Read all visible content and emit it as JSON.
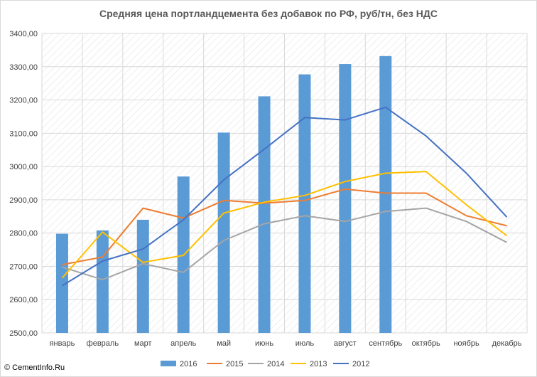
{
  "chart_data": {
    "type": "bar+line",
    "title": "Средняя цена портландцемента без добавок по РФ, руб/тн, без НДС",
    "categories": [
      "январь",
      "февраль",
      "март",
      "апрель",
      "май",
      "июнь",
      "июль",
      "август",
      "сентябрь",
      "октябрь",
      "ноябрь",
      "декабрь"
    ],
    "ylim": [
      2500,
      3400
    ],
    "yticks": [
      "2500,00",
      "2600,00",
      "2700,00",
      "2800,00",
      "2900,00",
      "3000,00",
      "3100,00",
      "3200,00",
      "3300,00",
      "3400,00"
    ],
    "grid": "diagonal hatched plot area",
    "legend_position": "bottom",
    "series": [
      {
        "name": "2016",
        "kind": "bar",
        "color": "#5b9bd5",
        "values": [
          2798,
          2808,
          2840,
          2970,
          3102,
          3211,
          3277,
          3308,
          3332,
          null,
          null,
          null
        ]
      },
      {
        "name": "2015",
        "kind": "line",
        "color": "#ed7d31",
        "values": [
          2705,
          2728,
          2875,
          2845,
          2898,
          2890,
          2898,
          2932,
          2920,
          2920,
          2852,
          2822
        ]
      },
      {
        "name": "2014",
        "kind": "line",
        "color": "#a5a5a5",
        "values": [
          2698,
          2660,
          2708,
          2682,
          2778,
          2828,
          2852,
          2835,
          2865,
          2875,
          2835,
          2772
        ]
      },
      {
        "name": "2013",
        "kind": "line",
        "color": "#ffc000",
        "values": [
          2665,
          2803,
          2712,
          2733,
          2860,
          2893,
          2913,
          2955,
          2980,
          2985,
          2885,
          2792
        ]
      },
      {
        "name": "2012",
        "kind": "line",
        "color": "#4472c4",
        "values": [
          2642,
          2716,
          2752,
          2840,
          2960,
          3052,
          3147,
          3140,
          3178,
          3092,
          2980,
          2848
        ]
      }
    ]
  },
  "footer": {
    "copyright_symbol": "©",
    "site": "CementInfo.Ru"
  }
}
